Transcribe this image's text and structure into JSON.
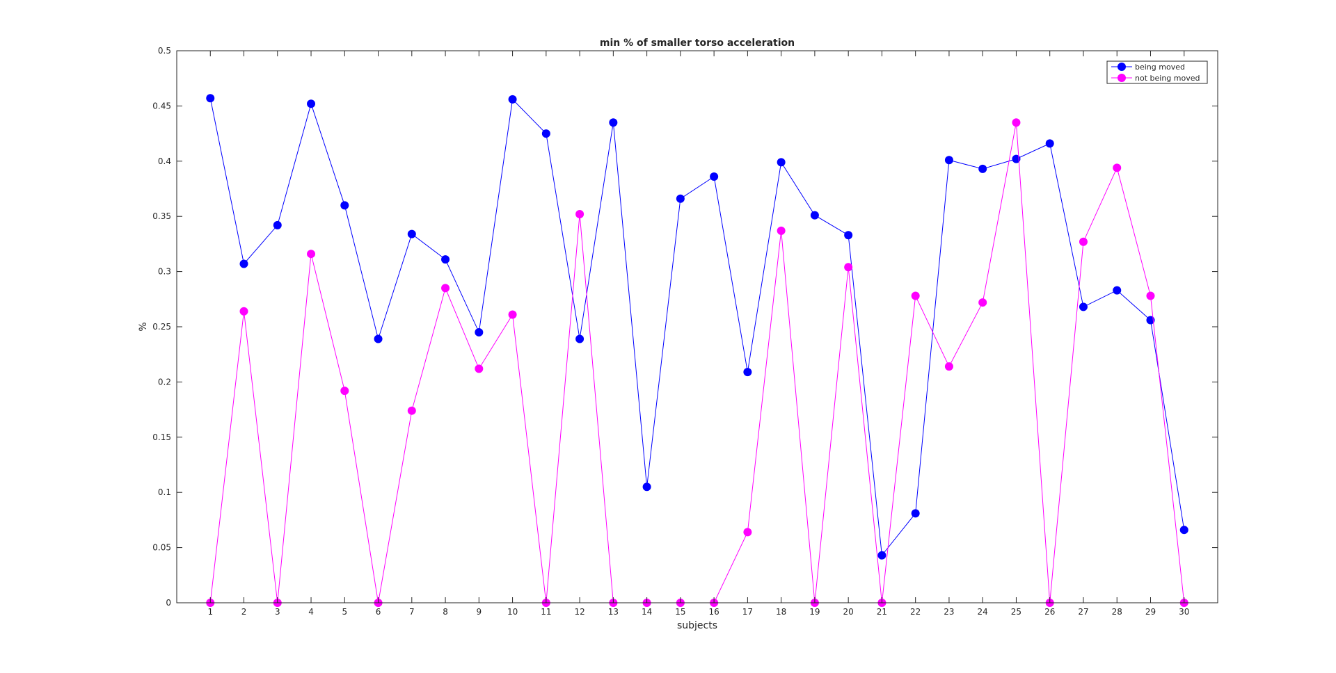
{
  "chart_data": {
    "type": "line",
    "title": "min % of smaller torso acceleration",
    "xlabel": "subjects",
    "ylabel": "%",
    "xlim": [
      0,
      30
    ],
    "ylim": [
      0,
      0.5
    ],
    "grid": false,
    "legend_position": "top-right",
    "x": [
      1,
      2,
      3,
      4,
      5,
      6,
      7,
      8,
      9,
      10,
      11,
      12,
      13,
      14,
      15,
      16,
      17,
      18,
      19,
      20,
      21,
      22,
      23,
      24,
      25,
      26,
      27,
      28,
      29,
      30
    ],
    "xticks": [
      "1",
      "2",
      "3",
      "4",
      "5",
      "6",
      "7",
      "8",
      "9",
      "10",
      "11",
      "12",
      "13",
      "14",
      "15",
      "16",
      "17",
      "18",
      "19",
      "20",
      "21",
      "22",
      "23",
      "24",
      "25",
      "26",
      "27",
      "28",
      "29",
      "30"
    ],
    "yticks": [
      "0",
      "0.05",
      "0.1",
      "0.15",
      "0.2",
      "0.25",
      "0.3",
      "0.35",
      "0.4",
      "0.45",
      "0.5"
    ],
    "series": [
      {
        "name": "being moved",
        "color": "#0000ff",
        "values": [
          0.457,
          0.307,
          0.342,
          0.452,
          0.36,
          0.239,
          0.334,
          0.311,
          0.245,
          0.456,
          0.425,
          0.239,
          0.435,
          0.105,
          0.366,
          0.386,
          0.209,
          0.399,
          0.351,
          0.333,
          0.043,
          0.081,
          0.401,
          0.393,
          0.402,
          0.416,
          0.268,
          0.283,
          0.256,
          0.066
        ]
      },
      {
        "name": "not being moved",
        "color": "#ff00ff",
        "values": [
          0,
          0.264,
          0,
          0.316,
          0.192,
          0,
          0.174,
          0.285,
          0.212,
          0.261,
          0,
          0.352,
          0,
          0,
          0,
          0,
          0.064,
          0.337,
          0,
          0.304,
          0,
          0.278,
          0.214,
          0.272,
          0.435,
          0,
          0.327,
          0.394,
          0.278,
          0
        ]
      }
    ]
  }
}
